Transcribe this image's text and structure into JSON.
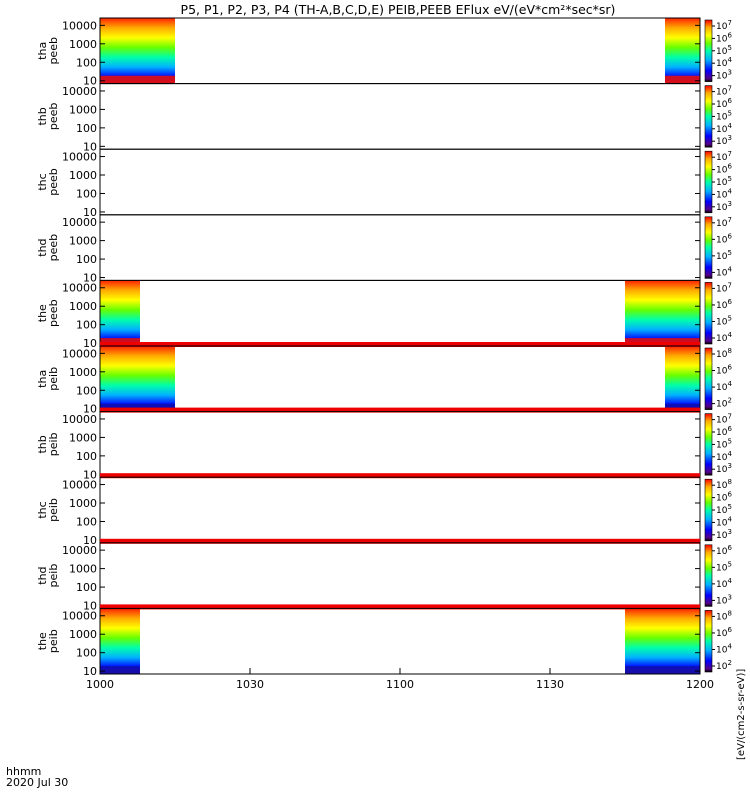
{
  "chart_data": {
    "type": "heatmap",
    "title": "P5, P1, P2, P3, P4 (TH-A,B,C,D,E) PEIB,PEEB EFlux eV/(eV*cm²*sec*sr)",
    "x_axis": {
      "range": [
        "1000",
        "1200"
      ],
      "ticks": [
        "1000",
        "1030",
        "1100",
        "1130",
        "1200"
      ],
      "label_hhmm": "hhmm",
      "label_date": "2020 Jul 30"
    },
    "y_axis": {
      "scale": "log",
      "range": [
        7,
        25000
      ],
      "ticks": [
        "10",
        "100",
        "1000",
        "10000"
      ]
    },
    "colorbar_label": "[eV/(cm2-s-sr-eV)]",
    "colormap": [
      "#550088",
      "#0000ff",
      "#00b0ff",
      "#00ffaa",
      "#66ff00",
      "#ffff00",
      "#ffaa00",
      "#ff2200"
    ],
    "panels": [
      {
        "label_top": "tha",
        "label_bottom": "peeb",
        "coverage": [
          [
            "1000",
            "1015"
          ],
          [
            "1153",
            "1200"
          ]
        ],
        "cbar_ticks": [
          {
            "base": "10",
            "exp": "7"
          },
          {
            "base": "10",
            "exp": "6"
          },
          {
            "base": "10",
            "exp": "5"
          },
          {
            "base": "10",
            "exp": "4"
          },
          {
            "base": "10",
            "exp": "3"
          }
        ],
        "red_band": false
      },
      {
        "label_top": "thb",
        "label_bottom": "peeb",
        "coverage": [],
        "cbar_ticks": [
          {
            "base": "10",
            "exp": "7"
          },
          {
            "base": "10",
            "exp": "6"
          },
          {
            "base": "10",
            "exp": "5"
          },
          {
            "base": "10",
            "exp": "4"
          },
          {
            "base": "10",
            "exp": "3"
          }
        ],
        "red_band": false
      },
      {
        "label_top": "thc",
        "label_bottom": "peeb",
        "coverage": [],
        "cbar_ticks": [
          {
            "base": "10",
            "exp": "7"
          },
          {
            "base": "10",
            "exp": "6"
          },
          {
            "base": "10",
            "exp": "5"
          },
          {
            "base": "10",
            "exp": "4"
          },
          {
            "base": "10",
            "exp": "3"
          }
        ],
        "red_band": false
      },
      {
        "label_top": "thd",
        "label_bottom": "peeb",
        "coverage": [],
        "cbar_ticks": [
          {
            "base": "10",
            "exp": "7"
          },
          {
            "base": "10",
            "exp": "6"
          },
          {
            "base": "10",
            "exp": "5"
          },
          {
            "base": "10",
            "exp": "4"
          }
        ],
        "red_band": false
      },
      {
        "label_top": "the",
        "label_bottom": "peeb",
        "coverage": [
          [
            "1000",
            "1008"
          ],
          [
            "1145",
            "1200"
          ]
        ],
        "cbar_ticks": [
          {
            "base": "10",
            "exp": "7"
          },
          {
            "base": "10",
            "exp": "6"
          },
          {
            "base": "10",
            "exp": "5"
          },
          {
            "base": "10",
            "exp": "4"
          }
        ],
        "red_band": false
      },
      {
        "label_top": "tha",
        "label_bottom": "peib",
        "coverage": [
          [
            "1000",
            "1015"
          ],
          [
            "1153",
            "1200"
          ]
        ],
        "cbar_ticks": [
          {
            "base": "10",
            "exp": "8"
          },
          {
            "base": "10",
            "exp": "6"
          },
          {
            "base": "10",
            "exp": "4"
          },
          {
            "base": "10",
            "exp": "2"
          }
        ],
        "red_band": true
      },
      {
        "label_top": "thb",
        "label_bottom": "peib",
        "coverage": [],
        "cbar_ticks": [
          {
            "base": "10",
            "exp": "7"
          },
          {
            "base": "10",
            "exp": "6"
          },
          {
            "base": "10",
            "exp": "5"
          },
          {
            "base": "10",
            "exp": "4"
          },
          {
            "base": "10",
            "exp": "3"
          }
        ],
        "red_band": true
      },
      {
        "label_top": "thc",
        "label_bottom": "peib",
        "coverage": [],
        "cbar_ticks": [
          {
            "base": "10",
            "exp": "8"
          },
          {
            "base": "10",
            "exp": "6"
          },
          {
            "base": "10",
            "exp": "5"
          },
          {
            "base": "10",
            "exp": "4"
          },
          {
            "base": "10",
            "exp": "3"
          }
        ],
        "red_band": true
      },
      {
        "label_top": "thd",
        "label_bottom": "peib",
        "coverage": [],
        "cbar_ticks": [
          {
            "base": "10",
            "exp": "6"
          },
          {
            "base": "10",
            "exp": "5"
          },
          {
            "base": "10",
            "exp": "4"
          },
          {
            "base": "10",
            "exp": "3"
          }
        ],
        "red_band": true
      },
      {
        "label_top": "the",
        "label_bottom": "peib",
        "coverage": [
          [
            "1000",
            "1008"
          ],
          [
            "1145",
            "1200"
          ]
        ],
        "cbar_ticks": [
          {
            "base": "10",
            "exp": "8"
          },
          {
            "base": "10",
            "exp": "6"
          },
          {
            "base": "10",
            "exp": "4"
          },
          {
            "base": "10",
            "exp": "2"
          }
        ],
        "red_band": true
      }
    ]
  }
}
